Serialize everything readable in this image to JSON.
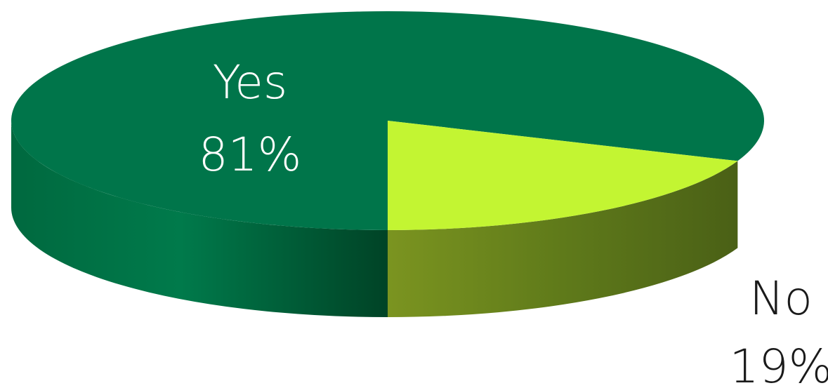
{
  "chart_data": {
    "type": "pie",
    "style": "3d",
    "title": "",
    "slices": [
      {
        "label": "Yes",
        "value_label": "81%",
        "value": 81,
        "color": "#00754a",
        "side_dark": "#004d2c"
      },
      {
        "label": "No",
        "value_label": "19%",
        "value": 19,
        "color": "#c3f532",
        "side_dark": "#4f6415"
      }
    ]
  }
}
